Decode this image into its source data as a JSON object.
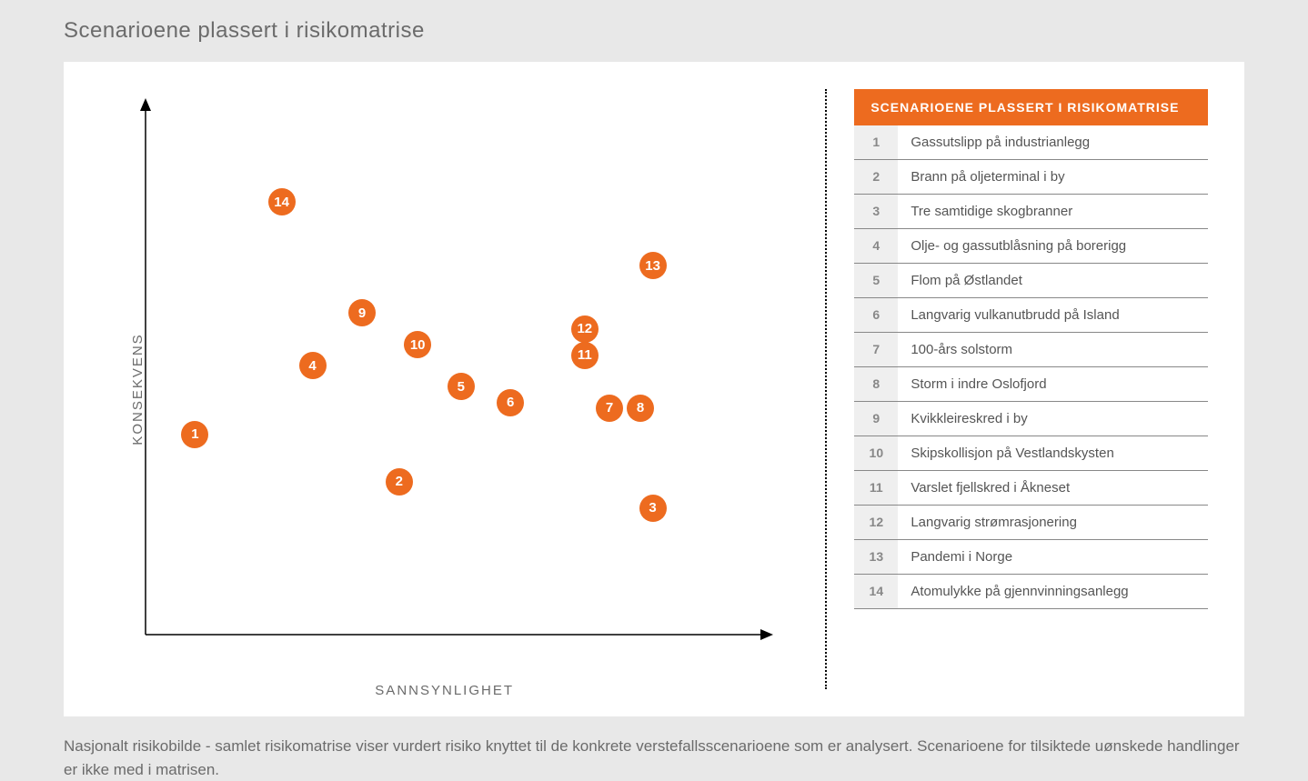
{
  "title": "Scenarioene plassert i risikomatrise",
  "chart": {
    "type": "scatter",
    "xlabel": "SANNSYNLIGHET",
    "ylabel": "KONSEKVENS",
    "xlim": [
      0,
      100
    ],
    "ylim": [
      0,
      100
    ],
    "background_color": "#ffffff",
    "axis_color": "#000000",
    "point_color": "#ed6b1f",
    "point_text_color": "#ffffff",
    "point_radius": 15,
    "point_fontsize": 15,
    "points": [
      {
        "id": "1",
        "x": 8,
        "y": 38
      },
      {
        "id": "2",
        "x": 41,
        "y": 29
      },
      {
        "id": "3",
        "x": 82,
        "y": 24
      },
      {
        "id": "4",
        "x": 27,
        "y": 51
      },
      {
        "id": "5",
        "x": 51,
        "y": 47
      },
      {
        "id": "6",
        "x": 59,
        "y": 44
      },
      {
        "id": "7",
        "x": 75,
        "y": 43
      },
      {
        "id": "8",
        "x": 80,
        "y": 43
      },
      {
        "id": "9",
        "x": 35,
        "y": 61
      },
      {
        "id": "10",
        "x": 44,
        "y": 55
      },
      {
        "id": "11",
        "x": 71,
        "y": 53
      },
      {
        "id": "12",
        "x": 71,
        "y": 58
      },
      {
        "id": "13",
        "x": 82,
        "y": 70
      },
      {
        "id": "14",
        "x": 22,
        "y": 82
      }
    ]
  },
  "legend": {
    "header": "SCENARIOENE PLASSERT I RISIKOMATRISE",
    "header_bg_color": "#ed6b1f",
    "header_text_color": "#ffffff",
    "row_num_bg_color": "#efefef",
    "row_border_color": "#888888",
    "items": [
      {
        "num": "1",
        "label": "Gassutslipp på industrianlegg"
      },
      {
        "num": "2",
        "label": "Brann på oljeterminal i by"
      },
      {
        "num": "3",
        "label": "Tre samtidige skogbranner"
      },
      {
        "num": "4",
        "label": "Olje- og gassutblåsning på borerigg"
      },
      {
        "num": "5",
        "label": "Flom på Østlandet"
      },
      {
        "num": "6",
        "label": "Langvarig vulkanutbrudd på Island"
      },
      {
        "num": "7",
        "label": "100-års solstorm"
      },
      {
        "num": "8",
        "label": "Storm i indre Oslofjord"
      },
      {
        "num": "9",
        "label": "Kvikkleireskred i by"
      },
      {
        "num": "10",
        "label": "Skipskollisjon på Vestlandskysten"
      },
      {
        "num": "11",
        "label": "Varslet fjellskred i Åkneset"
      },
      {
        "num": "12",
        "label": "Langvarig strømrasjonering"
      },
      {
        "num": "13",
        "label": "Pandemi i Norge"
      },
      {
        "num": "14",
        "label": "Atomulykke på gjennvinningsanlegg"
      }
    ]
  },
  "caption": "Nasjonalt risikobilde - samlet risikomatrise viser vurdert risiko knyttet til de konkrete verstefallsscenarioene som er analysert. Scenarioene for tilsiktede uønskede handlinger er ikke med i matrisen.",
  "page_bg_color": "#e8e8e8",
  "text_color": "#6b6b6b"
}
